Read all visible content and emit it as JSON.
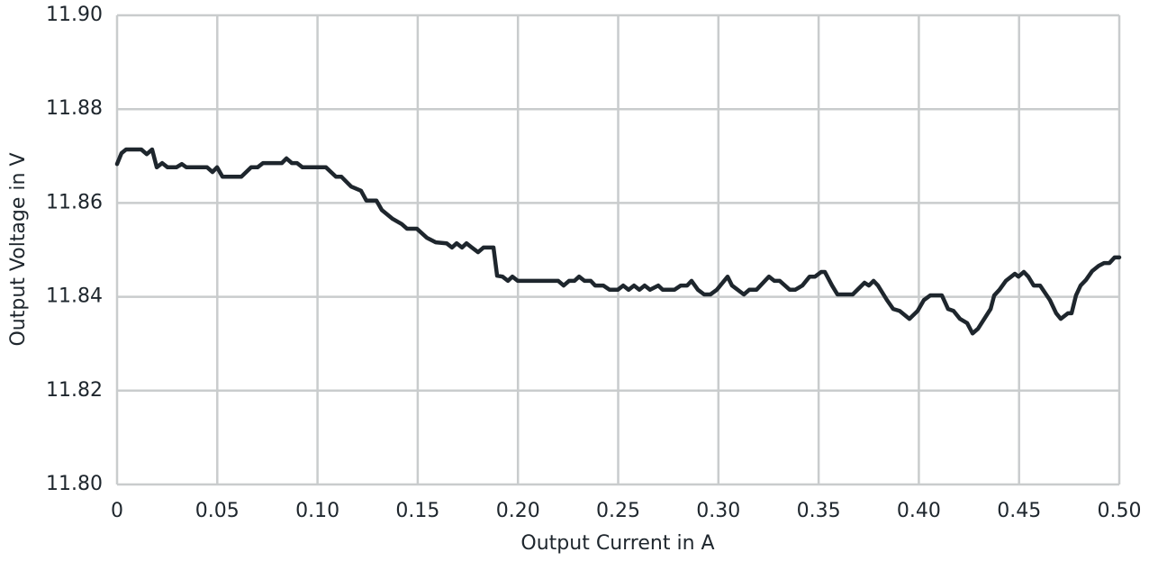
{
  "chart_data": {
    "type": "line",
    "xlabel": "Output Current in A",
    "ylabel": "Output Voltage in V",
    "xlim": [
      0,
      0.5
    ],
    "ylim": [
      11.8,
      11.9
    ],
    "xticks": [
      0,
      0.05,
      {
        "value": 0.1,
        "label": "0.10"
      },
      0.15,
      {
        "value": 0.2,
        "label": "0.20"
      },
      0.25,
      {
        "value": 0.3,
        "label": "0.30"
      },
      0.35,
      {
        "value": 0.4,
        "label": "0.40"
      },
      0.45,
      {
        "value": 0.5,
        "label": "0.50"
      }
    ],
    "yticks": [
      {
        "value": 11.8,
        "label": "11.80"
      },
      11.82,
      11.84,
      11.86,
      11.88,
      {
        "value": 11.9,
        "label": "11.90"
      }
    ],
    "grid": true,
    "color": "#1e262d",
    "x": [
      0,
      0.0022,
      0.0045,
      0.0121,
      0.0148,
      0.0175,
      0.0198,
      0.0225,
      0.0252,
      0.0296,
      0.0323,
      0.0346,
      0.0449,
      0.0476,
      0.0499,
      0.0526,
      0.062,
      0.0669,
      0.0701,
      0.0728,
      0.0822,
      0.0845,
      0.0872,
      0.0898,
      0.0925,
      0.1042,
      0.1092,
      0.1119,
      0.1168,
      0.1217,
      0.1244,
      0.1294,
      0.1321,
      0.1375,
      0.142,
      0.1447,
      0.1496,
      0.1545,
      0.159,
      0.1644,
      0.1671,
      0.1694,
      0.1721,
      0.1743,
      0.177,
      0.1801,
      0.1828,
      0.1878,
      0.1896,
      0.1923,
      0.195,
      0.1972,
      0.1999,
      0.2201,
      0.2228,
      0.2255,
      0.2282,
      0.2305,
      0.2332,
      0.2363,
      0.2385,
      0.2426,
      0.2457,
      0.2498,
      0.2525,
      0.2552,
      0.2579,
      0.2606,
      0.2632,
      0.2659,
      0.27,
      0.2722,
      0.2781,
      0.2812,
      0.2844,
      0.2866,
      0.2898,
      0.2929,
      0.296,
      0.2992,
      0.3046,
      0.3068,
      0.3127,
      0.3154,
      0.319,
      0.3252,
      0.3279,
      0.3306,
      0.3356,
      0.3383,
      0.3419,
      0.3455,
      0.3482,
      0.3513,
      0.3531,
      0.3567,
      0.3594,
      0.367,
      0.3729,
      0.3751,
      0.3774,
      0.3796,
      0.3841,
      0.3872,
      0.3904,
      0.3953,
      0.3994,
      0.4025,
      0.4057,
      0.4115,
      0.4146,
      0.4173,
      0.4205,
      0.4241,
      0.4268,
      0.4295,
      0.4358,
      0.4376,
      0.4402,
      0.4434,
      0.4479,
      0.4497,
      0.4524,
      0.4546,
      0.4573,
      0.4605,
      0.4654,
      0.4685,
      0.4708,
      0.4744,
      0.4762,
      0.4784,
      0.4807,
      0.4834,
      0.4865,
      0.4897,
      0.4924,
      0.4951,
      0.4977,
      0.5
    ],
    "values": [
      11.8683,
      11.8706,
      11.8714,
      11.8714,
      11.8704,
      11.8714,
      11.8676,
      11.8685,
      11.8676,
      11.8676,
      11.8683,
      11.8676,
      11.8676,
      11.8666,
      11.8676,
      11.8656,
      11.8656,
      11.8676,
      11.8676,
      11.8685,
      11.8685,
      11.8695,
      11.8685,
      11.8685,
      11.8676,
      11.8676,
      11.8656,
      11.8656,
      11.8635,
      11.8626,
      11.8605,
      11.8605,
      11.8585,
      11.8566,
      11.8555,
      11.8545,
      11.8545,
      11.8526,
      11.8516,
      11.8514,
      11.8505,
      11.8514,
      11.8505,
      11.8514,
      11.8505,
      11.8495,
      11.8505,
      11.8505,
      11.8445,
      11.8443,
      11.8434,
      11.8443,
      11.8434,
      11.8434,
      11.8424,
      11.8434,
      11.8434,
      11.8443,
      11.8434,
      11.8434,
      11.8424,
      11.8424,
      11.8415,
      11.8415,
      11.8424,
      11.8415,
      11.8424,
      11.8415,
      11.8424,
      11.8415,
      11.8424,
      11.8415,
      11.8415,
      11.8424,
      11.8424,
      11.8434,
      11.8415,
      11.8405,
      11.8405,
      11.8415,
      11.8443,
      11.8424,
      11.8405,
      11.8415,
      11.8415,
      11.8443,
      11.8434,
      11.8434,
      11.8415,
      11.8415,
      11.8424,
      11.8443,
      11.8443,
      11.8453,
      11.8453,
      11.8424,
      11.8405,
      11.8405,
      11.843,
      11.8424,
      11.8434,
      11.8424,
      11.8393,
      11.8374,
      11.837,
      11.8353,
      11.837,
      11.8393,
      11.8403,
      11.8403,
      11.8374,
      11.837,
      11.8353,
      11.8344,
      11.8322,
      11.8332,
      11.8374,
      11.8403,
      11.8415,
      11.8434,
      11.8449,
      11.8443,
      11.8453,
      11.8443,
      11.8424,
      11.8424,
      11.8393,
      11.8365,
      11.8353,
      11.8365,
      11.8365,
      11.8403,
      11.8424,
      11.8436,
      11.8455,
      11.8466,
      11.8472,
      11.8472,
      11.8484,
      11.8484
    ]
  }
}
